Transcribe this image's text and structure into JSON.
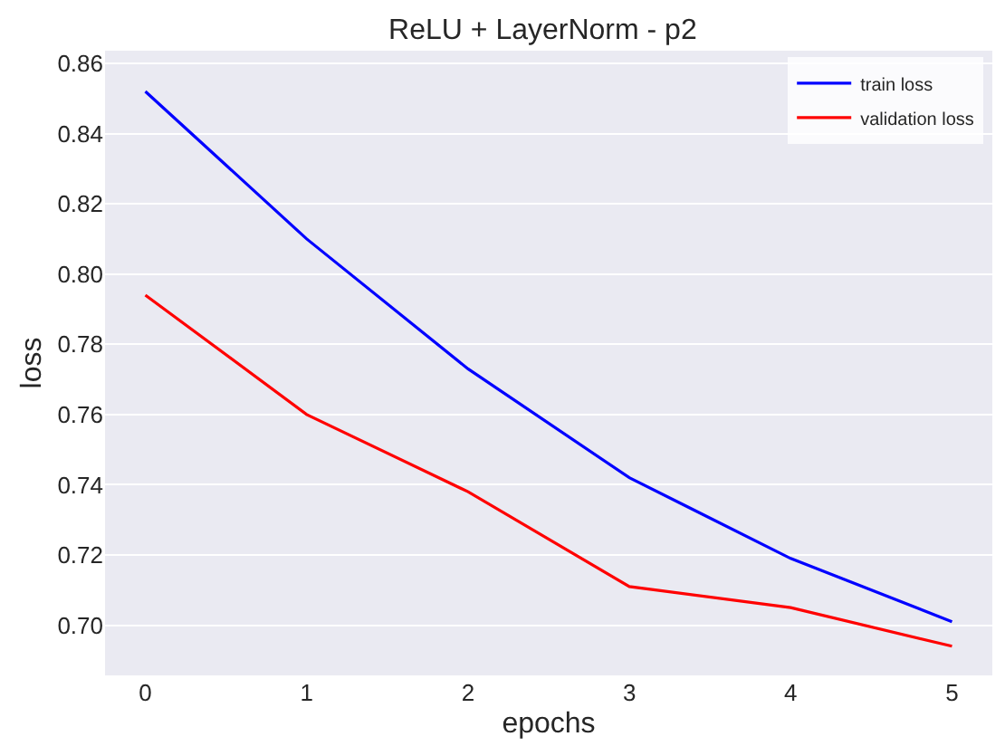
{
  "chart_data": {
    "type": "line",
    "title": "ReLU + LayerNorm - p2",
    "xlabel": "epochs",
    "ylabel": "loss",
    "x": [
      0,
      1,
      2,
      3,
      4,
      5
    ],
    "series": [
      {
        "name": "train loss",
        "color": "#0000ff",
        "values": [
          0.852,
          0.81,
          0.773,
          0.742,
          0.719,
          0.701
        ]
      },
      {
        "name": "validation loss",
        "color": "#ff0000",
        "values": [
          0.794,
          0.76,
          0.738,
          0.711,
          0.705,
          0.694
        ]
      }
    ],
    "xlim": [
      -0.25,
      5.25
    ],
    "xticks": [
      0,
      1,
      2,
      3,
      4,
      5
    ],
    "ylim": [
      0.6857,
      0.8636
    ],
    "yticks": [
      {
        "value": 0.7,
        "label": "0.70"
      },
      {
        "value": 0.72,
        "label": "0.72"
      },
      {
        "value": 0.74,
        "label": "0.74"
      },
      {
        "value": 0.76,
        "label": "0.76"
      },
      {
        "value": 0.78,
        "label": "0.78"
      },
      {
        "value": 0.8,
        "label": "0.80"
      },
      {
        "value": 0.82,
        "label": "0.82"
      },
      {
        "value": 0.84,
        "label": "0.84"
      },
      {
        "value": 0.86,
        "label": "0.86"
      }
    ],
    "grid": "y",
    "legend": "top right",
    "marker": "none",
    "line_style": "solid"
  }
}
